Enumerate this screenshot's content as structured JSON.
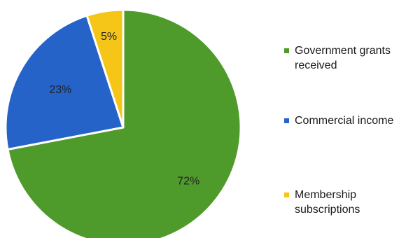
{
  "chart_data": {
    "type": "pie",
    "title": "",
    "slices": [
      {
        "label": "Government grants received",
        "value": 72,
        "value_label": "72%",
        "color": "#4e9a2a"
      },
      {
        "label": "Commercial income",
        "value": 23,
        "value_label": "23%",
        "color": "#2563c9"
      },
      {
        "label": "Membership subscriptions",
        "value": 5,
        "value_label": "5%",
        "color": "#f5c518"
      }
    ],
    "start": "12 o'clock",
    "direction": "clockwise",
    "legend_position": "right"
  }
}
